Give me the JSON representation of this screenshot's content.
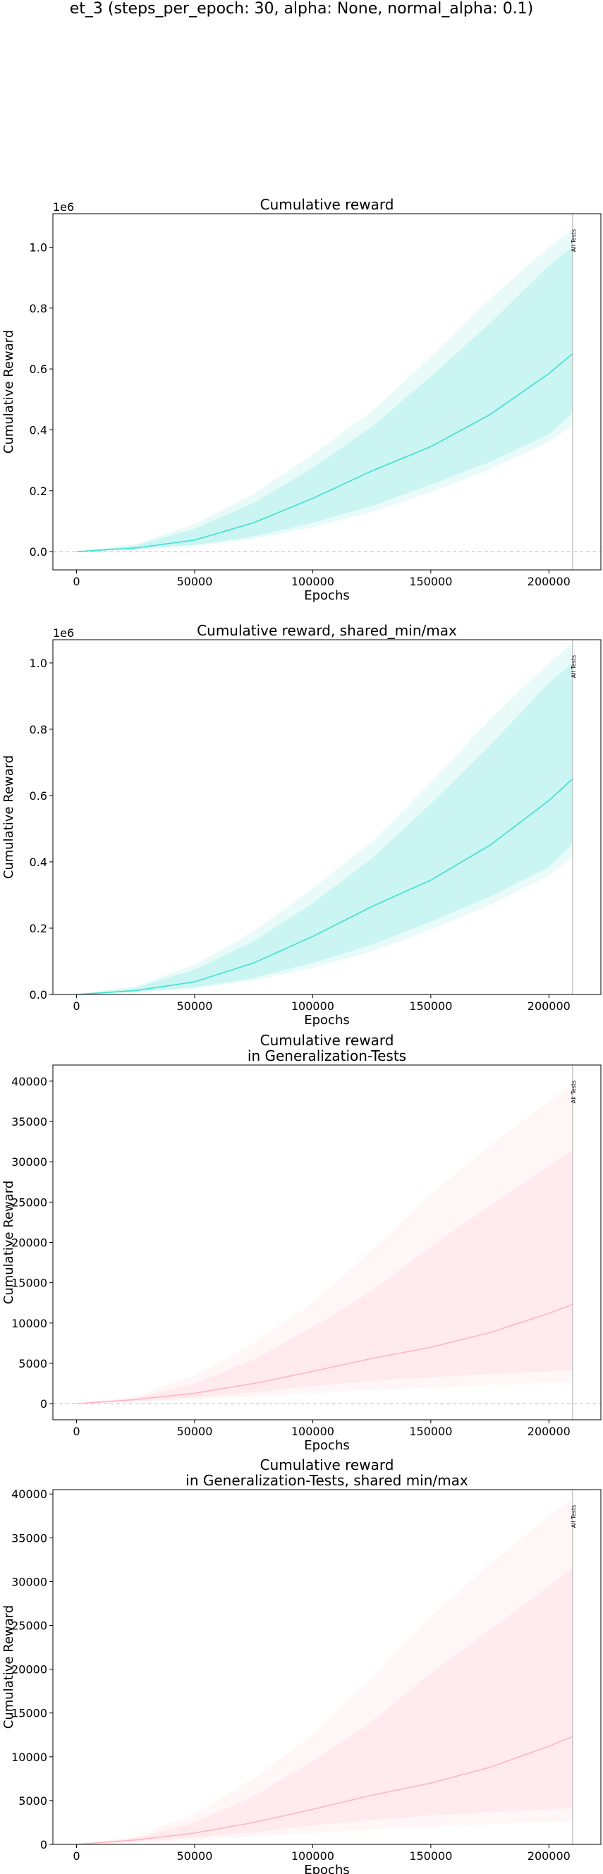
{
  "figure": {
    "suptitle": "et_3 (steps_per_epoch: 30, alpha: None, normal_alpha: 0.1)"
  },
  "chart_data": [
    {
      "type": "area",
      "title": "Cumulative reward",
      "xlabel": "Epochs",
      "ylabel": "Cumulative Reward",
      "offset_label": "1e6",
      "xlim": [
        -10000,
        222000
      ],
      "ylim": [
        -60000,
        1110000
      ],
      "xticks": [
        0,
        50000,
        100000,
        150000,
        200000
      ],
      "xtick_labels": [
        "0",
        "50000",
        "100000",
        "150000",
        "200000"
      ],
      "yticks": [
        0,
        200000,
        400000,
        600000,
        800000,
        1000000
      ],
      "ytick_labels": [
        "0.0",
        "0.2",
        "0.4",
        "0.6",
        "0.8",
        "1.0"
      ],
      "zero_line": true,
      "vline": {
        "x": 210000,
        "label": "All Tests"
      },
      "color": "#40e0d0",
      "x": [
        0,
        25000,
        50000,
        75000,
        100000,
        125000,
        150000,
        175000,
        200000,
        210000
      ],
      "series": [
        {
          "values": [
            0,
            12000,
            38000,
            95000,
            175000,
            265000,
            345000,
            450000,
            585000,
            650000
          ]
        }
      ],
      "band_inner_lower": [
        0,
        8000,
        22000,
        50000,
        95000,
        150000,
        220000,
        295000,
        385000,
        455000
      ],
      "band_inner_upper": [
        0,
        20000,
        75000,
        160000,
        275000,
        410000,
        575000,
        750000,
        940000,
        1000000
      ],
      "band_outer_lower": [
        0,
        6000,
        18000,
        42000,
        80000,
        130000,
        195000,
        270000,
        360000,
        415000
      ],
      "band_outer_upper": [
        0,
        25000,
        90000,
        190000,
        320000,
        460000,
        640000,
        830000,
        1000000,
        1060000
      ]
    },
    {
      "type": "area",
      "title": "Cumulative reward, shared_min/max",
      "xlabel": "Epochs",
      "ylabel": "Cumulative Reward",
      "offset_label": "1e6",
      "xlim": [
        -10000,
        222000
      ],
      "ylim": [
        0,
        1070000
      ],
      "xticks": [
        0,
        50000,
        100000,
        150000,
        200000
      ],
      "xtick_labels": [
        "0",
        "50000",
        "100000",
        "150000",
        "200000"
      ],
      "yticks": [
        0,
        200000,
        400000,
        600000,
        800000,
        1000000
      ],
      "ytick_labels": [
        "0.0",
        "0.2",
        "0.4",
        "0.6",
        "0.8",
        "1.0"
      ],
      "zero_line": false,
      "vline": {
        "x": 210000,
        "label": "All Tests"
      },
      "color": "#40e0d0",
      "x": [
        0,
        25000,
        50000,
        75000,
        100000,
        125000,
        150000,
        175000,
        200000,
        210000
      ],
      "series": [
        {
          "values": [
            0,
            12000,
            38000,
            95000,
            175000,
            265000,
            345000,
            450000,
            585000,
            650000
          ]
        }
      ],
      "band_inner_lower": [
        0,
        8000,
        22000,
        50000,
        95000,
        150000,
        220000,
        295000,
        385000,
        455000
      ],
      "band_inner_upper": [
        0,
        20000,
        75000,
        160000,
        275000,
        410000,
        575000,
        750000,
        940000,
        1000000
      ],
      "band_outer_lower": [
        0,
        6000,
        18000,
        42000,
        80000,
        130000,
        195000,
        270000,
        360000,
        415000
      ],
      "band_outer_upper": [
        0,
        25000,
        90000,
        190000,
        320000,
        460000,
        640000,
        830000,
        1000000,
        1060000
      ]
    },
    {
      "type": "area",
      "title": "Cumulative reward\nin Generalization-Tests",
      "xlabel": "Epochs",
      "ylabel": "Cumulative Reward",
      "offset_label": "",
      "xlim": [
        -10000,
        222000
      ],
      "ylim": [
        -2000,
        42000
      ],
      "xticks": [
        0,
        50000,
        100000,
        150000,
        200000
      ],
      "xtick_labels": [
        "0",
        "50000",
        "100000",
        "150000",
        "200000"
      ],
      "yticks": [
        0,
        5000,
        10000,
        15000,
        20000,
        25000,
        30000,
        35000,
        40000
      ],
      "ytick_labels": [
        "0",
        "5000",
        "10000",
        "15000",
        "20000",
        "25000",
        "30000",
        "35000",
        "40000"
      ],
      "zero_line": true,
      "vline": {
        "x": 210000,
        "label": "All Tests"
      },
      "color": "#ffb6c1",
      "x": [
        0,
        25000,
        50000,
        75000,
        100000,
        125000,
        150000,
        175000,
        200000,
        210000
      ],
      "series": [
        {
          "values": [
            0,
            500,
            1300,
            2500,
            4000,
            5600,
            7000,
            8800,
            11200,
            12300
          ]
        }
      ],
      "band_inner_lower": [
        0,
        300,
        800,
        1400,
        2200,
        2800,
        3300,
        3700,
        4000,
        4200
      ],
      "band_inner_upper": [
        0,
        700,
        2500,
        5500,
        9500,
        14000,
        19500,
        24500,
        29500,
        31500
      ],
      "band_outer_lower": [
        0,
        200,
        500,
        900,
        1300,
        1700,
        2000,
        2300,
        2600,
        2700
      ],
      "band_outer_upper": [
        0,
        900,
        3500,
        7500,
        12500,
        19000,
        26000,
        32000,
        37500,
        39500
      ]
    },
    {
      "type": "area",
      "title": "Cumulative reward\nin Generalization-Tests, shared min/max",
      "xlabel": "Epochs",
      "ylabel": "Cumulative Reward",
      "offset_label": "",
      "xlim": [
        -10000,
        222000
      ],
      "ylim": [
        0,
        40500
      ],
      "xticks": [
        0,
        50000,
        100000,
        150000,
        200000
      ],
      "xtick_labels": [
        "0",
        "50000",
        "100000",
        "150000",
        "200000"
      ],
      "yticks": [
        0,
        5000,
        10000,
        15000,
        20000,
        25000,
        30000,
        35000,
        40000
      ],
      "ytick_labels": [
        "0",
        "5000",
        "10000",
        "15000",
        "20000",
        "25000",
        "30000",
        "35000",
        "40000"
      ],
      "zero_line": false,
      "vline": {
        "x": 210000,
        "label": "All Tests"
      },
      "color": "#ffb6c1",
      "x": [
        0,
        25000,
        50000,
        75000,
        100000,
        125000,
        150000,
        175000,
        200000,
        210000
      ],
      "series": [
        {
          "values": [
            0,
            500,
            1300,
            2500,
            4000,
            5600,
            7000,
            8800,
            11200,
            12300
          ]
        }
      ],
      "band_inner_lower": [
        0,
        300,
        800,
        1400,
        2200,
        2800,
        3300,
        3700,
        4000,
        4200
      ],
      "band_inner_upper": [
        0,
        700,
        2500,
        5500,
        9500,
        14000,
        19500,
        24500,
        29500,
        31500
      ],
      "band_outer_lower": [
        0,
        200,
        500,
        900,
        1300,
        1700,
        2000,
        2300,
        2600,
        2700
      ],
      "band_outer_upper": [
        0,
        900,
        3500,
        7500,
        12500,
        19000,
        26000,
        32000,
        37500,
        39500
      ]
    }
  ]
}
